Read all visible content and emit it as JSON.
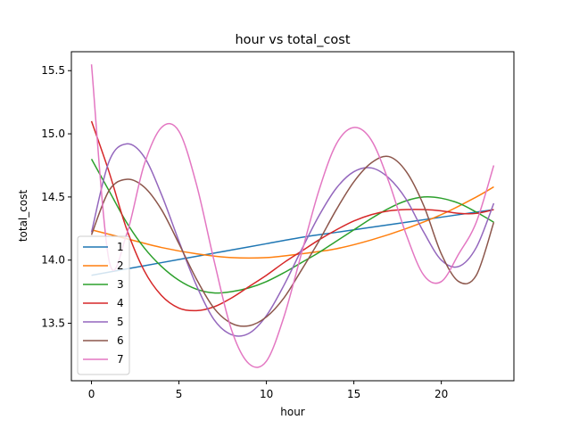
{
  "chart_data": {
    "type": "line",
    "title": "hour vs total_cost",
    "xlabel": "hour",
    "ylabel": "total_cost",
    "xlim": [
      -1.15,
      24.15
    ],
    "ylim": [
      13.045,
      15.65
    ],
    "xticks": [
      0,
      5,
      10,
      15,
      20
    ],
    "yticks": [
      13.5,
      14.0,
      14.5,
      15.0,
      15.5
    ],
    "ytick_labels": [
      "13.5",
      "14.0",
      "14.5",
      "15.0",
      "15.5"
    ],
    "grid": false,
    "legend_position": "lower-left",
    "series": [
      {
        "name": "1",
        "color": "#1f77b4",
        "x": [
          0,
          2,
          4,
          6,
          8,
          10,
          12,
          14,
          16,
          18,
          20,
          22,
          23
        ],
        "y": [
          13.88,
          13.93,
          13.98,
          14.03,
          14.08,
          14.13,
          14.18,
          14.22,
          14.26,
          14.3,
          14.34,
          14.38,
          14.4
        ]
      },
      {
        "name": "2",
        "color": "#ff7f0e",
        "x": [
          0,
          2,
          4,
          6,
          8,
          10,
          12,
          14,
          16,
          18,
          20,
          22,
          23
        ],
        "y": [
          14.24,
          14.17,
          14.1,
          14.05,
          14.02,
          14.02,
          14.05,
          14.09,
          14.16,
          14.25,
          14.36,
          14.5,
          14.58
        ]
      },
      {
        "name": "3",
        "color": "#2ca02c",
        "x": [
          0,
          1,
          2,
          3,
          4,
          5,
          6,
          7,
          8,
          9,
          10,
          11,
          12,
          13,
          14,
          15,
          16,
          17,
          18,
          19,
          20,
          21,
          22,
          23
        ],
        "y": [
          14.8,
          14.55,
          14.3,
          14.1,
          13.95,
          13.84,
          13.77,
          13.74,
          13.75,
          13.78,
          13.83,
          13.9,
          13.98,
          14.06,
          14.15,
          14.24,
          14.33,
          14.41,
          14.47,
          14.5,
          14.49,
          14.45,
          14.38,
          14.3
        ]
      },
      {
        "name": "4",
        "color": "#d62728",
        "x": [
          0,
          1,
          2,
          3,
          4,
          5,
          6,
          7,
          8,
          9,
          10,
          11,
          12,
          13,
          14,
          15,
          16,
          17,
          18,
          19,
          20,
          21,
          22,
          23
        ],
        "y": [
          15.1,
          14.7,
          14.25,
          13.92,
          13.72,
          13.62,
          13.6,
          13.63,
          13.7,
          13.79,
          13.88,
          13.98,
          14.07,
          14.16,
          14.24,
          14.31,
          14.36,
          14.39,
          14.4,
          14.4,
          14.39,
          14.37,
          14.37,
          14.4
        ]
      },
      {
        "name": "5",
        "color": "#9467bd",
        "x": [
          0,
          1,
          2,
          3,
          4,
          5,
          6,
          7,
          8,
          9,
          10,
          11,
          12,
          13,
          14,
          15,
          16,
          17,
          18,
          19,
          20,
          21,
          22,
          23
        ],
        "y": [
          14.22,
          14.78,
          14.92,
          14.82,
          14.52,
          14.15,
          13.8,
          13.53,
          13.41,
          13.42,
          13.56,
          13.8,
          14.08,
          14.35,
          14.57,
          14.7,
          14.73,
          14.65,
          14.48,
          14.22,
          14.0,
          13.95,
          14.1,
          14.45
        ]
      },
      {
        "name": "6",
        "color": "#8c564b",
        "x": [
          0,
          1,
          2,
          3,
          4,
          5,
          6,
          7,
          8,
          9,
          10,
          11,
          12,
          13,
          14,
          15,
          16,
          17,
          18,
          19,
          20,
          21,
          22,
          23
        ],
        "y": [
          14.2,
          14.55,
          14.64,
          14.58,
          14.4,
          14.13,
          13.85,
          13.62,
          13.5,
          13.48,
          13.55,
          13.7,
          13.92,
          14.15,
          14.4,
          14.62,
          14.77,
          14.82,
          14.7,
          14.43,
          14.05,
          13.83,
          13.88,
          14.3
        ]
      },
      {
        "name": "7",
        "color": "#e377c2",
        "x": [
          0,
          1,
          2,
          3,
          4,
          5,
          6,
          7,
          8,
          9,
          10,
          11,
          12,
          13,
          14,
          15,
          16,
          17,
          18,
          19,
          20,
          21,
          22,
          23
        ],
        "y": [
          15.55,
          14.0,
          14.2,
          14.75,
          15.05,
          15.02,
          14.6,
          14.0,
          13.45,
          13.18,
          13.2,
          13.55,
          14.05,
          14.55,
          14.92,
          15.05,
          14.95,
          14.62,
          14.2,
          13.88,
          13.83,
          14.05,
          14.3,
          14.75
        ]
      }
    ]
  }
}
